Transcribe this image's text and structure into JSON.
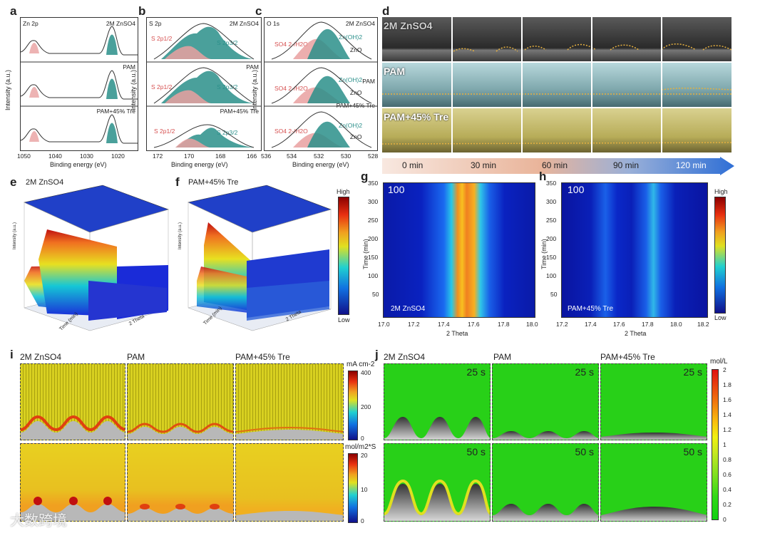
{
  "panels": {
    "a": {
      "letter": "a",
      "title": "Zn 2p",
      "samples": [
        "2M ZnSO4",
        "PAM",
        "PAM+45% Tre"
      ],
      "xlabel": "Binding energy (eV)",
      "ylabel": "Intensity (a.u.)",
      "xticks": [
        "1050",
        "1040",
        "1030",
        "1020"
      ]
    },
    "b": {
      "letter": "b",
      "title": "S 2p",
      "samples": [
        "2M ZnSO4",
        "PAM",
        "PAM+45% Tre"
      ],
      "peak1": "S 2p1/2",
      "peak2": "S 2p3/2",
      "xlabel": "Binding energy (eV)",
      "ylabel": "Intensity (a.u.)",
      "xticks": [
        "172",
        "170",
        "168",
        "166"
      ]
    },
    "c": {
      "letter": "c",
      "title": "O 1s",
      "samples": [
        "2M ZnSO4",
        "PAM",
        "PAM+45% Tre"
      ],
      "peak1": "SO4 2-/H2O",
      "peak2": "Zn(OH)2",
      "peak3": "ZnO",
      "xlabel": "Binding energy (eV)",
      "ylabel": "Intensity (a.u.)",
      "xticks": [
        "536",
        "534",
        "532",
        "530",
        "528"
      ]
    },
    "d": {
      "letter": "d",
      "rows": [
        "2M ZnSO4",
        "PAM",
        "PAM+45% Tre"
      ],
      "times": [
        "0 min",
        "30 min",
        "60 min",
        "90 min",
        "120 min"
      ]
    },
    "e": {
      "letter": "e",
      "title": "2M ZnSO4",
      "xlabel": "2 Theta",
      "ylabel": "Time (min)",
      "zlabel": "Intensity (a.u.)"
    },
    "f": {
      "letter": "f",
      "title": "PAM+45% Tre",
      "xlabel": "2 Theta",
      "ylabel": "Time (min)",
      "zlabel": "Intensity (a.u.)"
    },
    "efscale": {
      "high": "High",
      "low": "Low"
    },
    "g": {
      "letter": "g",
      "label": "2M ZnSO4",
      "corner": "100",
      "xlabel": "2 Theta",
      "ylabel": "Time (min)",
      "xticks": [
        "17.0",
        "17.2",
        "17.4",
        "17.6",
        "17.8",
        "18.0"
      ],
      "yticks": [
        "350",
        "300",
        "250",
        "200",
        "150",
        "100",
        "50"
      ]
    },
    "h": {
      "letter": "h",
      "label": "PAM+45% Tre",
      "corner": "100",
      "xlabel": "2 Theta",
      "ylabel": "Time (min)",
      "xticks": [
        "17.2",
        "17.4",
        "17.6",
        "17.8",
        "18.0",
        "18.2"
      ],
      "yticks": [
        "350",
        "300",
        "250",
        "200",
        "150",
        "100",
        "50"
      ]
    },
    "ghscale": {
      "high": "High",
      "low": "Low"
    },
    "i": {
      "letter": "i",
      "cols": [
        "2M ZnSO4",
        "PAM",
        "PAM+45% Tre"
      ],
      "top_unit": "mA cm-2",
      "top_ticks": [
        "400",
        "200",
        "0"
      ],
      "bottom_unit": "mol/m2*S",
      "bottom_ticks": [
        "20",
        "10",
        "0"
      ]
    },
    "j": {
      "letter": "j",
      "cols": [
        "2M ZnSO4",
        "PAM",
        "PAM+45% Tre"
      ],
      "times": [
        "25 s",
        "50 s"
      ],
      "unit": "mol/L",
      "ticks": [
        "2",
        "1.8",
        "1.6",
        "1.4",
        "1.2",
        "1",
        "0.8",
        "0.6",
        "0.4",
        "0.2",
        "0"
      ]
    }
  },
  "colors": {
    "teal": "#2a8f8a",
    "red": "#e06a6a",
    "arrow": "#2f6fd6"
  },
  "watermark": "大数跨境"
}
